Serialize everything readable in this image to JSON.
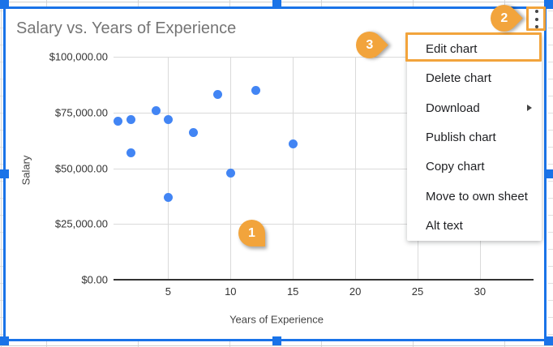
{
  "colors": {
    "accent_orange": "#f2a43c",
    "selection_blue": "#1a73e8",
    "point_blue": "#4285f4",
    "title_gray": "#757575"
  },
  "chart_data": {
    "type": "scatter",
    "title": "Salary vs. Years of Experience",
    "xlabel": "Years of Experience",
    "ylabel": "Salary",
    "xlim": [
      0.6,
      34.3
    ],
    "ylim": [
      0,
      100000
    ],
    "grid": true,
    "legend": "none",
    "x_ticks": [
      5,
      10,
      15,
      20,
      25,
      30
    ],
    "y_ticks": [
      {
        "label": "$0.00",
        "value": 0
      },
      {
        "label": "$25,000.00",
        "value": 25000
      },
      {
        "label": "$50,000.00",
        "value": 50000
      },
      {
        "label": "$75,000.00",
        "value": 75000
      },
      {
        "label": "$100,000.00",
        "value": 100000
      }
    ],
    "series": [
      {
        "name": "Salary",
        "color": "#4285f4",
        "points": [
          [
            1,
            71000
          ],
          [
            2,
            72000
          ],
          [
            2,
            57000
          ],
          [
            4,
            76000
          ],
          [
            5,
            72000
          ],
          [
            5,
            37000
          ],
          [
            7,
            66000
          ],
          [
            9,
            83000
          ],
          [
            10,
            48000
          ],
          [
            12,
            85000
          ],
          [
            15,
            61000
          ]
        ]
      }
    ]
  },
  "menu": {
    "items": [
      {
        "label": "Edit chart",
        "highlighted": true,
        "submenu": false
      },
      {
        "label": "Delete chart",
        "highlighted": false,
        "submenu": false
      },
      {
        "label": "Download",
        "highlighted": false,
        "submenu": true
      },
      {
        "label": "Publish chart",
        "highlighted": false,
        "submenu": false
      },
      {
        "label": "Copy chart",
        "highlighted": false,
        "submenu": false
      },
      {
        "label": "Move to own sheet",
        "highlighted": false,
        "submenu": false
      },
      {
        "label": "Alt text",
        "highlighted": false,
        "submenu": false
      }
    ]
  },
  "annotations": {
    "badges": [
      {
        "label": "1"
      },
      {
        "label": "2"
      },
      {
        "label": "3"
      }
    ]
  },
  "icons": {
    "more_vertical": "more-vertical-icon",
    "submenu_arrow": "submenu-arrow-icon"
  }
}
